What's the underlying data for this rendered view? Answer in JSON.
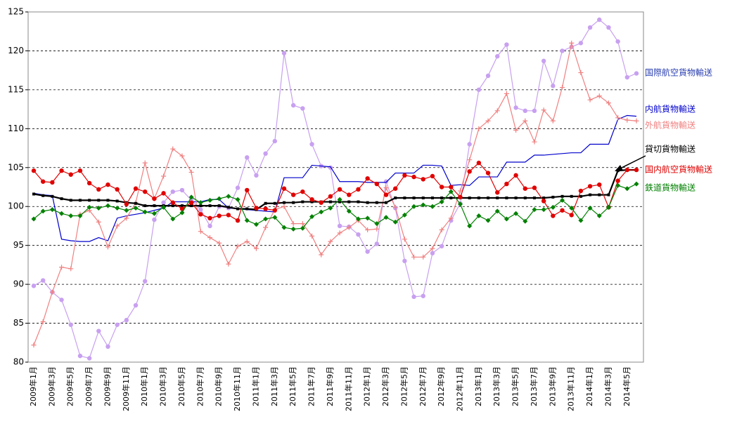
{
  "chart_data": {
    "type": "line",
    "categories": [
      "2009年1月",
      null,
      "2009年3月",
      null,
      "2009年5月",
      null,
      "2009年7月",
      null,
      "2009年9月",
      null,
      "2009年11月",
      null,
      "2010年1月",
      null,
      "2010年3月",
      null,
      "2010年5月",
      null,
      "2010年7月",
      null,
      "2010年9月",
      null,
      "2010年11月",
      null,
      "2011年1月",
      null,
      "2011年3月",
      null,
      "2011年5月",
      null,
      "2011年7月",
      null,
      "2011年9月",
      null,
      "2011年11月",
      null,
      "2012年1月",
      null,
      "2012年3月",
      null,
      "2012年5月",
      null,
      "2012年7月",
      null,
      "2012年9月",
      null,
      "2012年11月",
      null,
      "2013年1月",
      null,
      "2013年3月",
      null,
      "2013年5月",
      null,
      "2013年7月",
      null,
      "2013年9月",
      null,
      "2013年11月",
      null,
      "2014年1月",
      null,
      "2014年3月",
      null,
      "2014年5月",
      null
    ],
    "ylim": [
      80,
      125
    ],
    "yticks": [
      80,
      85,
      90,
      95,
      100,
      105,
      110,
      115,
      120,
      125
    ],
    "grid": true,
    "series": [
      {
        "name": "国際航空貨物輸送",
        "color": "#c8a0f0",
        "marker": "circle",
        "values": [
          89.8,
          90.5,
          89,
          88,
          84.8,
          80.8,
          80.5,
          84,
          82,
          84.8,
          85.4,
          87.3,
          90.4,
          98.3,
          100.5,
          101.9,
          102.1,
          100.8,
          99.6,
          97.5,
          100,
          99.8,
          102.4,
          106.3,
          104,
          106.8,
          108.4,
          119.7,
          113,
          112.6,
          108,
          105.2,
          105,
          97.5,
          97.4,
          96.4,
          94.2,
          95.2,
          103.2,
          99.8,
          93,
          88.4,
          88.5,
          94,
          94.9,
          98.2,
          100.4,
          108,
          115,
          116.8,
          119.3,
          120.8,
          112.7,
          112.3,
          112.3,
          118.7,
          115.5,
          120,
          120.5,
          121,
          123,
          124,
          123,
          121.2,
          116.6,
          117.1
        ]
      },
      {
        "name": "内航貨物輸送",
        "color": "#0000cc",
        "marker": "none",
        "values": [
          101.7,
          101.5,
          101.4,
          95.8,
          95.6,
          95.5,
          95.5,
          96,
          95.6,
          98.5,
          98.8,
          99,
          99.2,
          99.5,
          99.8,
          100.6,
          100.6,
          100.6,
          100.6,
          100.9,
          100.9,
          99.8,
          99.7,
          99.6,
          99.5,
          99.4,
          99.3,
          103.7,
          103.7,
          103.7,
          105.3,
          105.2,
          105.1,
          103.2,
          103.2,
          103.2,
          103.1,
          103.1,
          103.1,
          104.3,
          104.3,
          104.3,
          105.3,
          105.3,
          105.2,
          102.7,
          102.8,
          102.7,
          103.8,
          103.8,
          103.8,
          105.7,
          105.7,
          105.7,
          106.6,
          106.6,
          106.7,
          106.8,
          106.9,
          106.9,
          108,
          108,
          108,
          111.2,
          111.7,
          111.6
        ]
      },
      {
        "name": "外航貨物輸送",
        "color": "#f08080",
        "marker": "plus",
        "values": [
          82.2,
          85.2,
          89,
          92.2,
          92,
          99,
          99.5,
          98,
          94.8,
          97.5,
          98.5,
          100.5,
          105.6,
          101,
          103.9,
          107.4,
          106.5,
          104.4,
          96.8,
          96,
          95.3,
          92.6,
          94.9,
          95.5,
          94.6,
          97.3,
          99.6,
          100,
          97.8,
          97.8,
          96.2,
          93.8,
          95.5,
          96.6,
          97.3,
          98.2,
          97,
          97.1,
          102.4,
          99.9,
          95.8,
          93.5,
          93.5,
          94.6,
          97,
          98.5,
          102,
          106,
          110,
          111,
          112.3,
          114.5,
          109.8,
          111,
          108.3,
          112.4,
          111,
          115.3,
          121,
          117.2,
          113.7,
          114.2,
          113.3,
          111.4,
          111.1,
          111
        ]
      },
      {
        "name": "貸切貨物輸送",
        "color": "#000000",
        "marker": "square",
        "values": [
          101.6,
          101.4,
          101.3,
          101,
          100.8,
          100.8,
          100.8,
          100.8,
          100.8,
          100.7,
          100.5,
          100.4,
          100.1,
          100.1,
          100.1,
          100.1,
          100.1,
          100.1,
          100.1,
          100.1,
          100.1,
          99.9,
          99.7,
          99.7,
          99.6,
          100.4,
          100.4,
          100.5,
          100.5,
          100.6,
          100.6,
          100.6,
          100.6,
          100.6,
          100.6,
          100.6,
          100.5,
          100.5,
          100.5,
          101.1,
          101.1,
          101.1,
          101.1,
          101.1,
          101.1,
          101.1,
          101.1,
          101.1,
          101.1,
          101.1,
          101.1,
          101.1,
          101.1,
          101.1,
          101.1,
          101.1,
          101.2,
          101.3,
          101.3,
          101.3,
          101.5,
          101.5,
          101.5,
          104.6,
          104.7,
          104.7
        ]
      },
      {
        "name": "国内航空貨物輸送",
        "color": "#e00000",
        "marker": "circle",
        "values": [
          104.6,
          103.2,
          103.1,
          104.6,
          104.1,
          104.6,
          103,
          102.2,
          102.8,
          102.2,
          100.3,
          102.3,
          101.9,
          101,
          101.7,
          100.5,
          99.7,
          100.5,
          99,
          98.5,
          98.8,
          98.9,
          98.2,
          102.1,
          99.8,
          99.7,
          99.5,
          102.3,
          101.5,
          101.9,
          100.9,
          100.5,
          101.3,
          102.2,
          101.5,
          102.2,
          103.6,
          102.9,
          101.5,
          102.3,
          104,
          103.8,
          103.5,
          103.9,
          102.5,
          102.5,
          101.2,
          104.5,
          105.6,
          104.3,
          101.8,
          102.9,
          104,
          102.3,
          102.4,
          100.7,
          98.8,
          99.5,
          98.9,
          102,
          102.6,
          102.8,
          99.9,
          103.3,
          104.7,
          104.7
        ]
      },
      {
        "name": "鉄道貨物輸送",
        "color": "#008000",
        "marker": "diamond",
        "values": [
          98.4,
          99.4,
          99.6,
          99.1,
          98.8,
          98.8,
          99.9,
          99.8,
          100.1,
          99.8,
          99.5,
          99.8,
          99.3,
          99.1,
          99.9,
          98.4,
          99.2,
          101.2,
          100.5,
          100.8,
          101,
          101.3,
          100.9,
          98.2,
          97.7,
          98.4,
          98.6,
          97.3,
          97.1,
          97.2,
          98.7,
          99.3,
          99.8,
          100.9,
          99.4,
          98.4,
          98.5,
          97.8,
          98.6,
          98,
          98.9,
          100,
          100.2,
          100,
          100.6,
          101.9,
          100.3,
          97.5,
          98.8,
          98.2,
          99.4,
          98.4,
          99.1,
          98.1,
          99.6,
          99.6,
          99.9,
          100.8,
          99.8,
          98.2,
          99.8,
          98.8,
          99.9,
          102.7,
          102.3,
          102.9
        ]
      }
    ]
  }
}
